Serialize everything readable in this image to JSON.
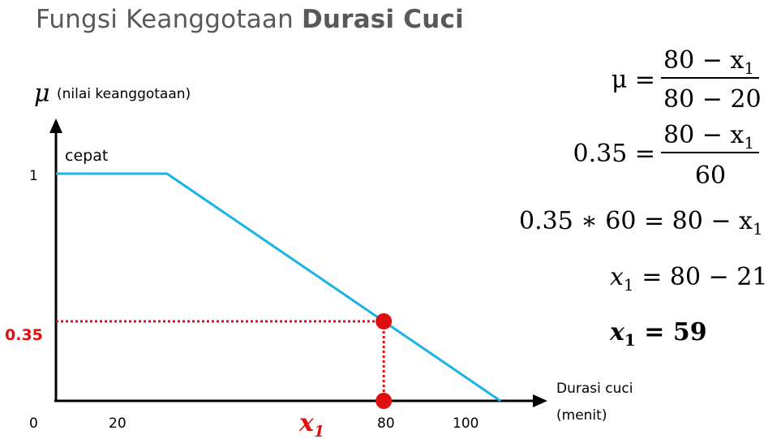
{
  "title": {
    "prefix": "Fungsi Keanggotaan ",
    "bold": "Durasi Cuci"
  },
  "y_axis": {
    "symbol": "μ",
    "label": "(nilai keanggotaan)"
  },
  "x_axis": {
    "label_line1": "Durasi cuci",
    "label_line2": "(menit)"
  },
  "ticks": {
    "y_one": "1",
    "x": [
      "0",
      "20",
      "80",
      "100"
    ]
  },
  "membership": {
    "name": "cepat",
    "points": [
      [
        0,
        1
      ],
      [
        20,
        1
      ],
      [
        80,
        0
      ]
    ]
  },
  "highlight": {
    "y_label": "0.35",
    "x_label_var": "x",
    "x_label_sub": "1",
    "x_value": 59,
    "y_value": 0.35
  },
  "colors": {
    "curve": "#1ab3e6",
    "highlight": "#e01010",
    "axis": "#000000"
  },
  "equations": {
    "eq1": {
      "lhs": "μ =",
      "num": "80 − x",
      "num_sub": "1",
      "den": "80 − 20"
    },
    "eq2": {
      "lhs": "0.35 =",
      "num": "80 − x",
      "num_sub": "1",
      "den": "60"
    },
    "eq3": {
      "text": "0.35 ∗ 60 = 80 − x",
      "sub": "1"
    },
    "eq4": {
      "var": "x",
      "sub": "1",
      "rhs": " = 80 − 21"
    },
    "eq5": {
      "var": "x",
      "sub": "1",
      "rhs": " = 59"
    }
  }
}
